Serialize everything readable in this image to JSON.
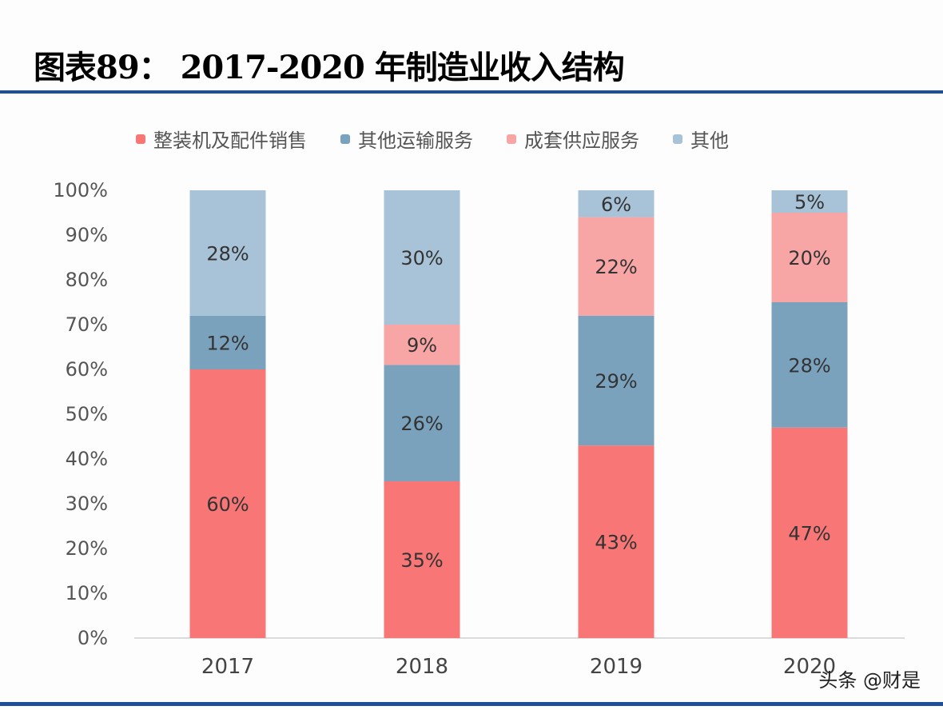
{
  "title": "图表89：  2017-2020 年制造业收入结构",
  "watermark": "头条 @财是",
  "chart_data": {
    "type": "bar",
    "stacked": true,
    "categories": [
      "2017",
      "2018",
      "2019",
      "2020"
    ],
    "series": [
      {
        "name": "整装机及配件销售",
        "color": "#f87676",
        "values": [
          60,
          35,
          43,
          47
        ]
      },
      {
        "name": "其他运输服务",
        "color": "#7aa2bd",
        "values": [
          12,
          26,
          29,
          28
        ]
      },
      {
        "name": "成套供应服务",
        "color": "#f7a5a5",
        "values": [
          0,
          9,
          22,
          20
        ]
      },
      {
        "name": "其他",
        "color": "#a8c3d7",
        "values": [
          28,
          30,
          6,
          5
        ]
      }
    ],
    "data_labels": [
      [
        "60%",
        "35%",
        "43%",
        "47%"
      ],
      [
        "12%",
        "26%",
        "29%",
        "28%"
      ],
      [
        "",
        "9%",
        "22%",
        "20%"
      ],
      [
        "28%",
        "30%",
        "6%",
        "5%"
      ]
    ],
    "yticks": [
      "0%",
      "10%",
      "20%",
      "30%",
      "40%",
      "50%",
      "60%",
      "70%",
      "80%",
      "90%",
      "100%"
    ],
    "ylim": [
      0,
      100
    ],
    "legend_position": "top",
    "grid": false
  }
}
